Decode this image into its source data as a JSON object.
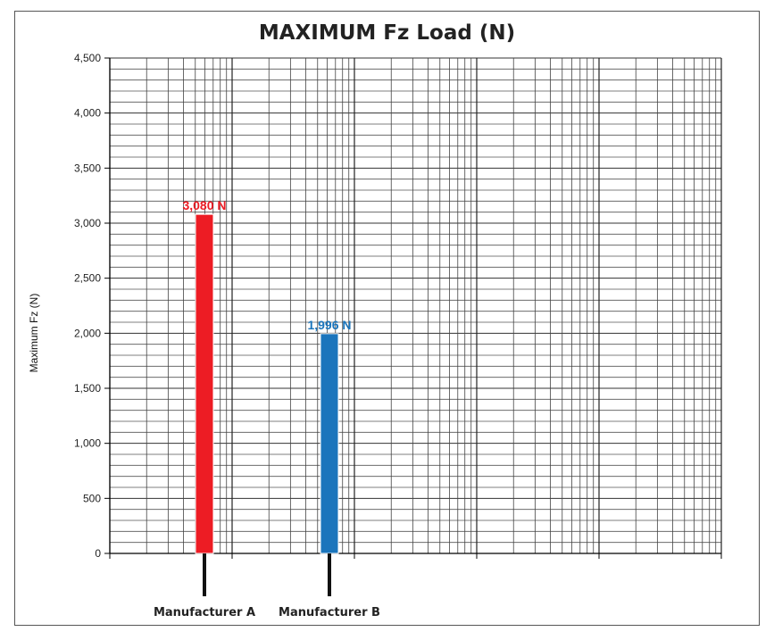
{
  "chart_data": {
    "type": "bar",
    "title": "MAXIMUM Fz Load (N)",
    "xlabel": "",
    "ylabel": "Maximum Fz (N)",
    "ylim": [
      0,
      4500
    ],
    "yticks": [
      "0",
      "500",
      "1,000",
      "1,500",
      "2,000",
      "2,500",
      "3,000",
      "3,500",
      "4,000",
      "4,500"
    ],
    "categories": [
      "Manufacturer A",
      "Manufacturer B"
    ],
    "values": [
      3080,
      1996
    ],
    "data_labels": [
      "3,080 N",
      "1,996 N"
    ],
    "colors": [
      "#ed1c24",
      "#1b75bc"
    ],
    "grid": true,
    "grid_x_scale": "log",
    "legend": "none"
  }
}
